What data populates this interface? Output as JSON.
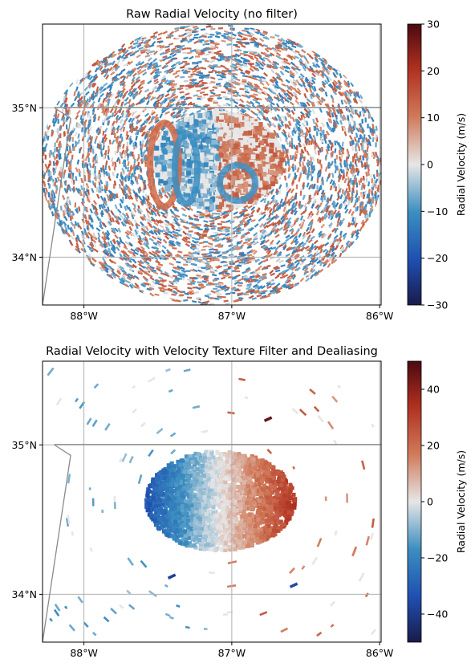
{
  "chart_data": [
    {
      "type": "heatmap",
      "title": "Raw Radial Velocity (no filter)",
      "x_ticks": [
        -88,
        -87,
        -86
      ],
      "x_tick_labels": [
        "88°W",
        "87°W",
        "86°W"
      ],
      "y_ticks": [
        34,
        35
      ],
      "y_tick_labels": [
        "34°N",
        "35°N"
      ],
      "xlim": [
        -88.28,
        -85.99
      ],
      "ylim": [
        33.68,
        35.56
      ],
      "colorbar": {
        "label": "Radial Velocity (m/s)",
        "vmin": -30,
        "vmax": 30,
        "ticks": [
          -30,
          -20,
          -10,
          0,
          10,
          20,
          30
        ],
        "tick_labels": [
          "−30",
          "−20",
          "−10",
          "0",
          "10",
          "20",
          "30"
        ]
      },
      "grid": true,
      "radar_center": [
        -87.1,
        34.6
      ]
    },
    {
      "type": "heatmap",
      "title": "Radial Velocity with Velocity Texture Filter and Dealiasing",
      "x_ticks": [
        -88,
        -87,
        -86
      ],
      "x_tick_labels": [
        "88°W",
        "87°W",
        "86°W"
      ],
      "y_ticks": [
        34,
        35
      ],
      "y_tick_labels": [
        "34°N",
        "35°N"
      ],
      "xlim": [
        -88.28,
        -85.99
      ],
      "ylim": [
        33.68,
        35.56
      ],
      "colorbar": {
        "label": "Radial Velocity (m/s)",
        "vmin": -50,
        "vmax": 50,
        "ticks": [
          -40,
          -20,
          0,
          20,
          40
        ],
        "tick_labels": [
          "−40",
          "−20",
          "0",
          "20",
          "40"
        ]
      },
      "grid": true,
      "radar_center": [
        -87.1,
        34.6
      ]
    }
  ],
  "colors": {
    "cmap_stops": [
      "#1a1a4a",
      "#1f4fb0",
      "#3b8ec0",
      "#e6e6e6",
      "#d07a5a",
      "#b03020",
      "#4a0a10"
    ],
    "border_line": "#8a8a8a",
    "grid_line": "#b0b0b0"
  }
}
